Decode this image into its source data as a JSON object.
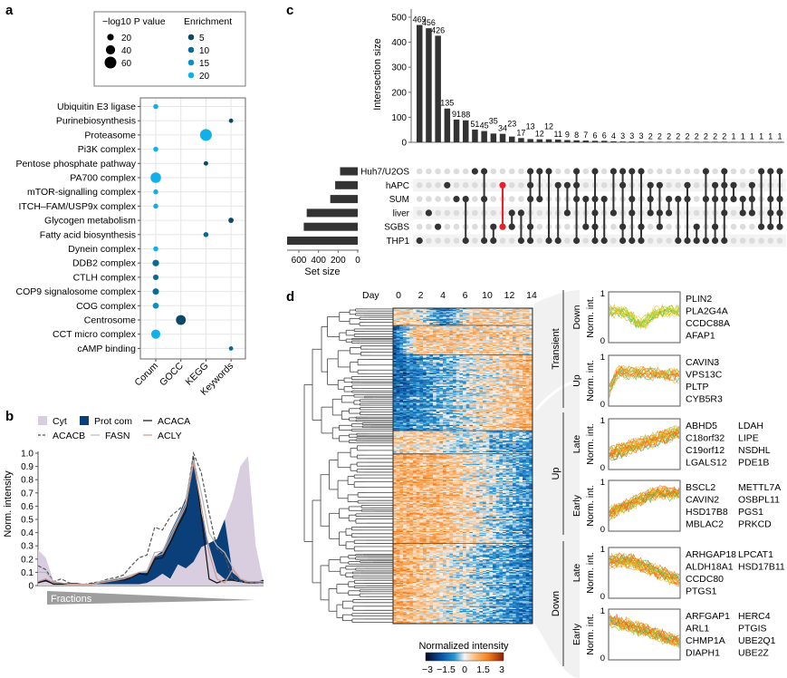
{
  "panels": {
    "a": "a",
    "b": "b",
    "c": "c",
    "d": "d"
  },
  "chart_data": [
    {
      "id": "a",
      "type": "scatter",
      "title": "",
      "legend": {
        "size_title": "−log10 P value",
        "size_entries": [
          20,
          40,
          60
        ],
        "color_title": "Enrichment",
        "color_entries": [
          {
            "value": 5,
            "color": "#0b4a66"
          },
          {
            "value": 10,
            "color": "#0a6a96"
          },
          {
            "value": 15,
            "color": "#0d8ec9"
          },
          {
            "value": 20,
            "color": "#12b0ea"
          }
        ]
      },
      "categories_x": [
        "Corum",
        "GOCC",
        "KEGG",
        "Keywords"
      ],
      "categories_y": [
        "Ubiquitin E3 ligase",
        "Purinebiosynthesis",
        "Proteasome",
        "Pi3K complex",
        "Pentose phosphate pathway",
        "PA700 complex",
        "mTOR-signalling complex",
        "ITCH–FAM/USP9x complex",
        "Glycogen metabolism",
        "Fatty acid biosynthesis",
        "Dynein complex",
        "DDB2 complex",
        "CTLH complex",
        "COP9 signalosome complex",
        "COG complex",
        "Centrosome",
        "CCT micro complex",
        "cAMP binding"
      ],
      "points": [
        {
          "term": "Ubiquitin E3 ligase",
          "db": "Corum",
          "neglog10p": 8,
          "enrichment": 20
        },
        {
          "term": "Purinebiosynthesis",
          "db": "Keywords",
          "neglog10p": 3,
          "enrichment": 5
        },
        {
          "term": "Proteasome",
          "db": "KEGG",
          "neglog10p": 60,
          "enrichment": 20
        },
        {
          "term": "Pi3K complex",
          "db": "Corum",
          "neglog10p": 8,
          "enrichment": 20
        },
        {
          "term": "Pentose phosphate pathway",
          "db": "KEGG",
          "neglog10p": 4,
          "enrichment": 5
        },
        {
          "term": "PA700 complex",
          "db": "Corum",
          "neglog10p": 50,
          "enrichment": 20
        },
        {
          "term": "mTOR-signalling complex",
          "db": "Corum",
          "neglog10p": 8,
          "enrichment": 20
        },
        {
          "term": "ITCH–FAM/USP9x complex",
          "db": "Corum",
          "neglog10p": 8,
          "enrichment": 20
        },
        {
          "term": "Glycogen metabolism",
          "db": "Keywords",
          "neglog10p": 10,
          "enrichment": 5
        },
        {
          "term": "Fatty acid biosynthesis",
          "db": "KEGG",
          "neglog10p": 8,
          "enrichment": 10
        },
        {
          "term": "Dynein complex",
          "db": "Corum",
          "neglog10p": 8,
          "enrichment": 20
        },
        {
          "term": "DDB2 complex",
          "db": "Corum",
          "neglog10p": 20,
          "enrichment": 12
        },
        {
          "term": "CTLH complex",
          "db": "Corum",
          "neglog10p": 12,
          "enrichment": 10
        },
        {
          "term": "COP9 signalosome complex",
          "db": "Corum",
          "neglog10p": 18,
          "enrichment": 12
        },
        {
          "term": "COG complex",
          "db": "Corum",
          "neglog10p": 16,
          "enrichment": 14
        },
        {
          "term": "Centrosome",
          "db": "GOCC",
          "neglog10p": 45,
          "enrichment": 5
        },
        {
          "term": "CCT micro complex",
          "db": "Corum",
          "neglog10p": 40,
          "enrichment": 20
        },
        {
          "term": "cAMP binding",
          "db": "Keywords",
          "neglog10p": 3,
          "enrichment": 10
        }
      ]
    },
    {
      "id": "b",
      "type": "area",
      "xlabel": "Fractions",
      "ylabel": "Norm. intensity",
      "ylim": [
        0,
        1.0
      ],
      "yticks": [
        "0",
        "0.1",
        "0.2",
        "0.3",
        "0.4",
        "0.5",
        "0.6",
        "0.7",
        "0.8",
        "0.9",
        "1.0"
      ],
      "legend": [
        "Cyt",
        "Prot com",
        "ACACA",
        "ACACB",
        "FASN",
        "ACLY"
      ],
      "x": [
        1,
        2,
        3,
        4,
        5,
        6,
        7,
        8,
        9,
        10,
        11,
        12,
        13,
        14,
        15,
        16,
        17,
        18,
        19,
        20,
        21,
        22,
        23,
        24,
        25,
        26,
        27,
        28,
        29,
        30
      ],
      "series": [
        {
          "name": "Cyt",
          "kind": "area",
          "color": "#d9cde0",
          "values": [
            0.27,
            0.21,
            0.03,
            0.02,
            0.01,
            0.01,
            0.01,
            0.01,
            0.01,
            0.01,
            0.01,
            0.01,
            0.01,
            0.01,
            0.02,
            0.05,
            0.09,
            0.04,
            0.16,
            0.13,
            0.18,
            0.29,
            0.32,
            0.35,
            0.5,
            0.65,
            0.9,
            0.98,
            0.3,
            0.02
          ]
        },
        {
          "name": "Prot com",
          "kind": "band",
          "color": "#0b3f7a",
          "lower": [
            0.02,
            0.03,
            0.01,
            0.01,
            0.01,
            0.01,
            0.01,
            0.01,
            0.01,
            0.01,
            0.01,
            0.01,
            0.01,
            0.01,
            0.02,
            0.05,
            0.09,
            0.05,
            0.16,
            0.13,
            0.18,
            0.29,
            0.32,
            0.35,
            0.5,
            0.1,
            0.05,
            0.02,
            0.02,
            0.02
          ],
          "upper": [
            0.03,
            0.04,
            0.03,
            0.02,
            0.02,
            0.02,
            0.01,
            0.02,
            0.03,
            0.04,
            0.05,
            0.06,
            0.07,
            0.1,
            0.11,
            0.22,
            0.26,
            0.4,
            0.52,
            0.66,
            0.98,
            0.55,
            0.3,
            0.1,
            0.05,
            0.04,
            0.03,
            0.03,
            0.03,
            0.03
          ]
        },
        {
          "name": "ACACA",
          "kind": "line",
          "color": "#111111",
          "dash": "solid",
          "values": [
            0.02,
            0.04,
            0.01,
            0.01,
            0.01,
            0.01,
            0.01,
            0.01,
            0.02,
            0.03,
            0.04,
            0.04,
            0.06,
            0.09,
            0.08,
            0.2,
            0.21,
            0.32,
            0.45,
            0.56,
            0.97,
            0.52,
            0.05,
            0.02,
            0.04,
            0.04,
            0.03,
            0.02,
            0.02,
            0.04
          ]
        },
        {
          "name": "ACACB",
          "kind": "line",
          "color": "#555555",
          "dash": "dashed",
          "values": [
            0.15,
            0.12,
            0.03,
            0.05,
            0.02,
            0.01,
            0.01,
            0.02,
            0.03,
            0.05,
            0.06,
            0.08,
            0.15,
            0.21,
            0.23,
            0.44,
            0.42,
            0.52,
            0.57,
            0.62,
            1.0,
            0.85,
            0.55,
            0.28,
            0.23,
            0.05,
            0.03,
            0.02,
            0.02,
            0.02
          ]
        },
        {
          "name": "FASN",
          "kind": "line",
          "color": "#b8b8b8",
          "dash": "solid",
          "values": [
            0.1,
            0.1,
            0.03,
            0.02,
            0.01,
            0.01,
            0.01,
            0.01,
            0.03,
            0.04,
            0.05,
            0.06,
            0.08,
            0.1,
            0.11,
            0.25,
            0.26,
            0.38,
            0.5,
            0.63,
            0.95,
            0.7,
            0.4,
            0.3,
            0.25,
            0.14,
            0.05,
            0.03,
            0.03,
            0.03
          ]
        },
        {
          "name": "ACLY",
          "kind": "line",
          "color": "#c99a8e",
          "dash": "solid",
          "values": [
            0.03,
            0.05,
            0.02,
            0.02,
            0.01,
            0.01,
            0.01,
            0.01,
            0.02,
            0.03,
            0.04,
            0.05,
            0.07,
            0.1,
            0.1,
            0.22,
            0.24,
            0.35,
            0.48,
            0.6,
            0.93,
            0.6,
            0.25,
            0.05,
            0.02,
            0.12,
            0.05,
            0.03,
            0.03,
            0.03
          ]
        }
      ]
    },
    {
      "id": "c",
      "type": "bar",
      "title": "",
      "ylabel": "Intersection size",
      "ylim": [
        0,
        500
      ],
      "yticks": [
        0,
        100,
        200,
        300,
        400,
        500
      ],
      "intersection_sizes": [
        469,
        456,
        426,
        135,
        91,
        88,
        51,
        45,
        35,
        34,
        23,
        17,
        13,
        12,
        12,
        11,
        9,
        8,
        7,
        6,
        6,
        4,
        3,
        3,
        3,
        2,
        2,
        2,
        2,
        2,
        2,
        2,
        2,
        2,
        1,
        1,
        1,
        1,
        1,
        1
      ],
      "sets": [
        "Huh7/U2OS",
        "hAPC",
        "SUM",
        "liver",
        "SGBS",
        "THP1"
      ],
      "set_size_label": "Set size",
      "set_size_ticks": [
        600,
        400,
        200,
        0
      ],
      "set_sizes": [
        180,
        230,
        280,
        520,
        550,
        720
      ],
      "highlight_color": "#e8202a",
      "highlight_column": 9,
      "membership": [
        [
          "THP1"
        ],
        [
          "liver"
        ],
        [
          "SGBS"
        ],
        [
          "hAPC"
        ],
        [
          "SUM"
        ],
        [
          "SUM",
          "THP1"
        ],
        [
          "Huh7/U2OS"
        ],
        [
          "Huh7/U2OS",
          "SUM",
          "THP1"
        ],
        [
          "SGBS",
          "THP1"
        ],
        [
          "hAPC",
          "SGBS"
        ],
        [
          "liver",
          "SGBS"
        ],
        [
          "liver",
          "THP1"
        ],
        [
          "Huh7/U2OS",
          "hAPC",
          "SUM",
          "SGBS",
          "THP1"
        ],
        [
          "Huh7/U2OS",
          "SUM"
        ],
        [
          "Huh7/U2OS",
          "THP1"
        ],
        [
          "hAPC",
          "THP1"
        ],
        [
          "hAPC",
          "liver"
        ],
        [
          "Huh7/U2OS",
          "hAPC",
          "SUM",
          "THP1"
        ],
        [
          "SUM",
          "SGBS"
        ],
        [
          "Huh7/U2OS",
          "SUM",
          "liver",
          "SGBS",
          "THP1"
        ],
        [
          "SUM",
          "THP1"
        ],
        [
          "Huh7/U2OS",
          "liver"
        ],
        [
          "Huh7/U2OS",
          "hAPC",
          "SGBS",
          "THP1"
        ],
        [
          "Huh7/U2OS",
          "SUM",
          "liver",
          "THP1"
        ],
        [
          "Huh7/U2OS",
          "SGBS",
          "THP1"
        ],
        [
          "hAPC",
          "SUM",
          "liver"
        ],
        [
          "hAPC",
          "liver",
          "SGBS"
        ],
        [
          "SUM",
          "liver"
        ],
        [
          "SUM",
          "THP1"
        ],
        [
          "hAPC",
          "SUM",
          "THP1"
        ],
        [
          "SGBS",
          "THP1"
        ],
        [
          "Huh7/U2OS",
          "SUM",
          "THP1"
        ],
        [
          "hAPC",
          "SUM",
          "SGBS",
          "THP1"
        ],
        [
          "Huh7/U2OS",
          "hAPC",
          "SUM",
          "liver",
          "THP1"
        ],
        [
          "hAPC",
          "SUM"
        ],
        [
          "SUM",
          "liver"
        ],
        [
          "hAPC",
          "SUM",
          "liver"
        ],
        [
          "Huh7/U2OS",
          "SGBS"
        ],
        [
          "Huh7/U2OS",
          "SUM",
          "liver",
          "SGBS"
        ],
        [
          "Huh7/U2OS",
          "SUM",
          "liver",
          "SGBS"
        ]
      ]
    },
    {
      "id": "d",
      "type": "heatmap",
      "day_label": "Day",
      "days": [
        "0",
        "2",
        "4",
        "6",
        "10",
        "12",
        "14"
      ],
      "colorbar_title": "Normalized intensity",
      "colorbar_ticks": [
        "−3",
        "−1.5",
        "0",
        "1.5",
        "3"
      ],
      "colorbar_range": [
        -3,
        3
      ],
      "clusters": [
        {
          "group": "Transient",
          "direction": "Down",
          "pattern": "transient-down",
          "rows": 18
        },
        {
          "group": "Transient",
          "direction": "Up",
          "pattern": "transient-up",
          "rows": 30
        },
        {
          "group": "Up",
          "timing": "Late",
          "pattern": "up-late",
          "rows": 78
        },
        {
          "group": "Up",
          "timing": "Early",
          "pattern": "up-early",
          "rows": 24
        },
        {
          "group": "Down",
          "timing": "Late",
          "pattern": "down-late",
          "rows": 92
        },
        {
          "group": "Down",
          "timing": "Early",
          "pattern": "down-early",
          "rows": 82
        }
      ],
      "profile_panels": [
        {
          "group": "Transient",
          "sub": "Down",
          "ylabel": "Norm. int.",
          "ymin": "0",
          "ymax": "1",
          "genes": [
            "PLIN2",
            "PLA2G4A",
            "CCDC88A",
            "AFAP1"
          ],
          "trend": "transient-down"
        },
        {
          "group": "Transient",
          "sub": "Up",
          "ylabel": "Norm. int.",
          "ymin": "0",
          "ymax": "1",
          "genes": [
            "CAVIN3",
            "VPS13C",
            "PLTP",
            "CYB5R3"
          ],
          "trend": "transient-up"
        },
        {
          "group": "Up",
          "sub": "Late",
          "ylabel": "Norm. int.",
          "ymin": "0",
          "ymax": "1",
          "genes": [
            "ABHD5",
            "C18orf32",
            "C19orf12",
            "LGALS12",
            "LDAH",
            "LIPE",
            "NSDHL",
            "PDE1B"
          ],
          "trend": "up-late"
        },
        {
          "group": "Up",
          "sub": "Early",
          "ylabel": "Norm. int.",
          "ymin": "0",
          "ymax": "1",
          "genes": [
            "BSCL2",
            "CAVIN2",
            "HSD17B8",
            "MBLAC2",
            "METTL7A",
            "OSBPL11",
            "PGS1",
            "PRKCD"
          ],
          "trend": "up-early"
        },
        {
          "group": "Down",
          "sub": "Late",
          "ylabel": "Norm. int.",
          "ymin": "0",
          "ymax": "1",
          "genes": [
            "ARHGAP18",
            "ALDH18A1",
            "CCDC80",
            "PTGS1",
            "LPCAT1",
            "HSD17B11"
          ],
          "trend": "down-late"
        },
        {
          "group": "Down",
          "sub": "Early",
          "ylabel": "Norm. int.",
          "ymin": "0",
          "ymax": "1",
          "genes": [
            "ARFGAP1",
            "ARL1",
            "CHMP1A",
            "DIAPH1",
            "HERC4",
            "PTGIS",
            "UBE2Q1",
            "UBE2Z"
          ],
          "trend": "down-early"
        }
      ],
      "group_labels": [
        "Transient",
        "Up",
        "Down"
      ]
    }
  ]
}
